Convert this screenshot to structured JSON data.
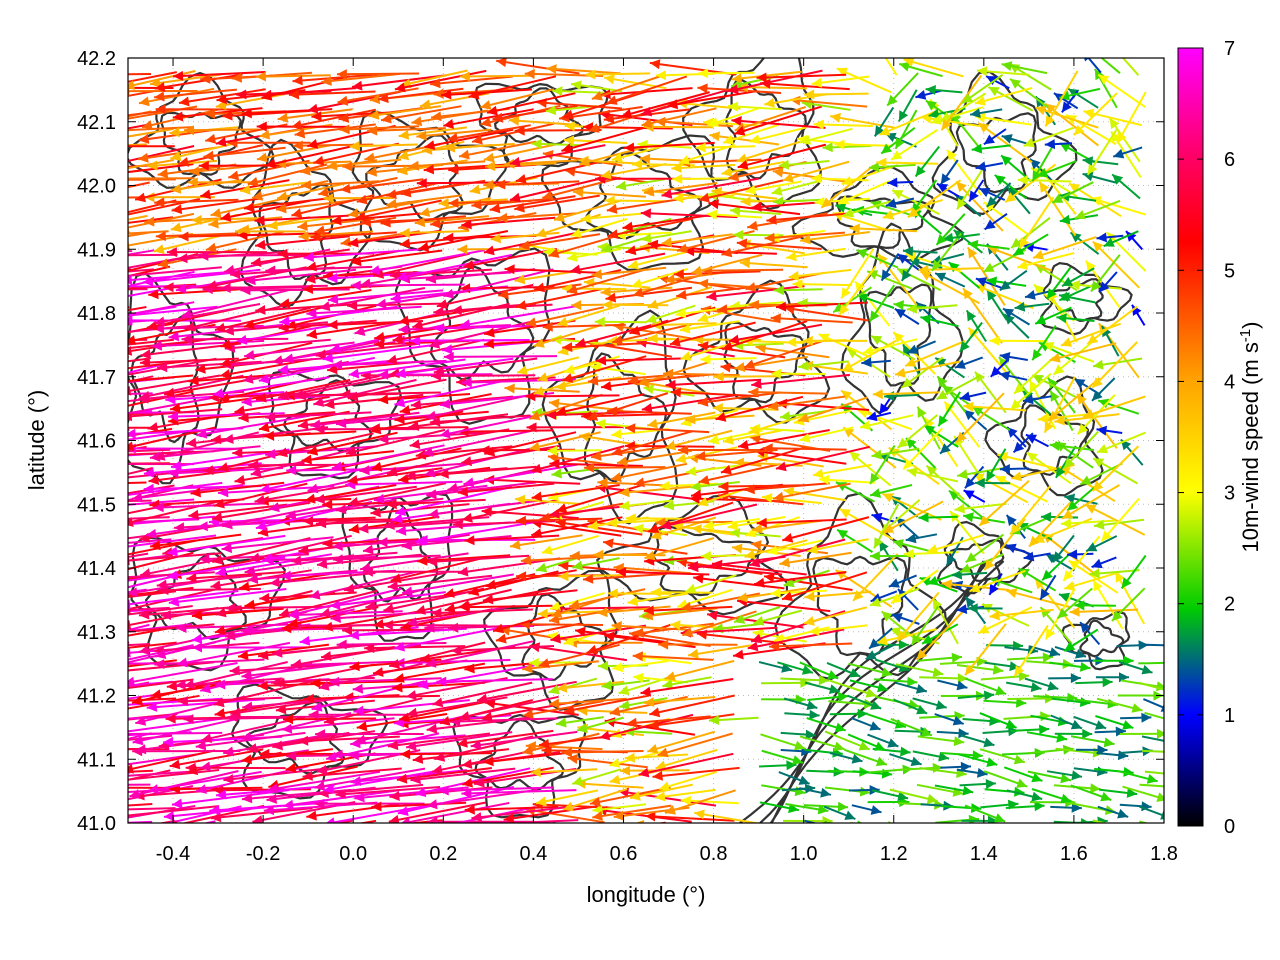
{
  "chart_data": {
    "type": "vector-field",
    "xlabel": "longitude (°)",
    "ylabel": "latitude (°)",
    "xlim": [
      -0.5,
      1.8
    ],
    "ylim": [
      41.0,
      42.2
    ],
    "xticks": [
      "-0.4",
      "-0.2",
      "0.0",
      "0.2",
      "0.4",
      "0.6",
      "0.8",
      "1.0",
      "1.2",
      "1.4",
      "1.6",
      "1.8"
    ],
    "yticks": [
      "41.0",
      "41.1",
      "41.2",
      "41.3",
      "41.4",
      "41.5",
      "41.6",
      "41.7",
      "41.8",
      "41.9",
      "42.0",
      "42.1",
      "42.2"
    ],
    "grid": true,
    "colorbar": {
      "label": "10m-wind speed (m s",
      "label_sup": "-1",
      "label_end": ")",
      "range": [
        0,
        7
      ],
      "ticks": [
        "0",
        "1",
        "2",
        "3",
        "4",
        "5",
        "6",
        "7"
      ],
      "colors": [
        "#000000",
        "#0000ff",
        "#00cc00",
        "#ffff00",
        "#ffa500",
        "#ff0000",
        "#ff00ff"
      ]
    },
    "contour_color": "#333333",
    "wind_regimes": [
      {
        "region": "west (lon < 0.5)",
        "direction": "from east",
        "speed_ms": 6.5
      },
      {
        "region": "central (lon 0.5-1.1)",
        "direction": "from east",
        "speed_ms": 4.5
      },
      {
        "region": "east north (lon > 1.1, lat > 41.3)",
        "direction": "variable",
        "speed_ms": 2.5
      },
      {
        "region": "southeast (lon > 0.9, lat < 41.3)",
        "direction": "from west",
        "speed_ms": 1.8
      }
    ]
  }
}
